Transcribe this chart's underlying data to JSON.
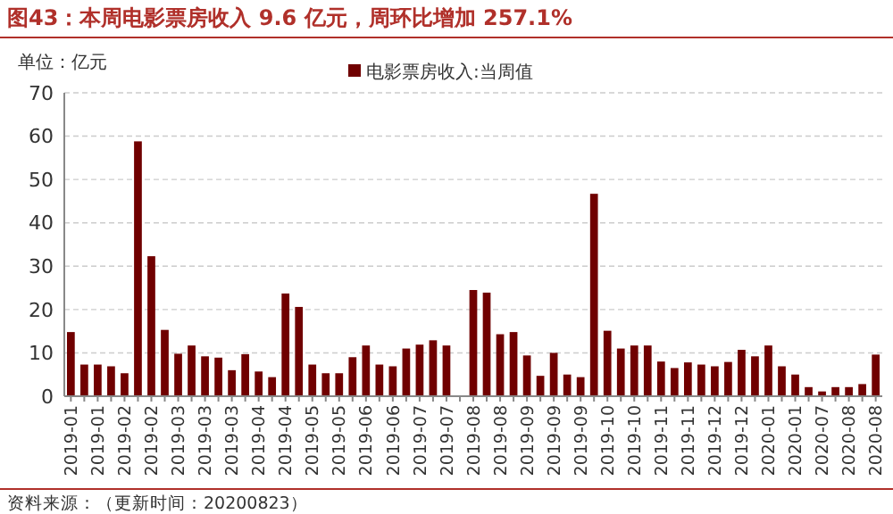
{
  "chart_data": {
    "type": "bar",
    "title": "图43：本周电影票房收入 9.6 亿元，周环比增加 257.1%",
    "ylabel": "单位：亿元",
    "categories": [
      "2019-01",
      null,
      "2019-01",
      null,
      "2019-02",
      null,
      "2019-02",
      null,
      "2019-03",
      null,
      "2019-03",
      null,
      "2019-03",
      null,
      "2019-04",
      null,
      "2019-04",
      null,
      "2019-05",
      null,
      "2019-05",
      null,
      "2019-06",
      null,
      "2019-06",
      null,
      "2019-07",
      null,
      "2019-07",
      null,
      "2019-08",
      null,
      "2019-08",
      null,
      "2019-09",
      null,
      "2019-09",
      null,
      "2019-09",
      null,
      "2019-10",
      null,
      "2019-10",
      null,
      "2019-11",
      null,
      "2019-11",
      null,
      "2019-12",
      null,
      "2019-12",
      null,
      "2020-01",
      null,
      "2020-01",
      null,
      "2020-07",
      null,
      "2020-08",
      null,
      "2020-08"
    ],
    "series": [
      {
        "name": "电影票房收入:当周值",
        "color": "#700000",
        "values": [
          14.8,
          7.3,
          7.3,
          6.9,
          5.3,
          58.8,
          32.3,
          15.3,
          9.8,
          11.7,
          9.2,
          8.9,
          6.0,
          9.7,
          5.7,
          4.4,
          23.7,
          20.6,
          7.3,
          5.3,
          5.3,
          9.0,
          11.7,
          7.3,
          6.9,
          11.0,
          11.9,
          12.9,
          11.7,
          null,
          24.5,
          23.9,
          14.3,
          14.8,
          9.4,
          4.7,
          10.0,
          5.0,
          4.4,
          46.7,
          15.1,
          11.0,
          11.7,
          11.7,
          8.0,
          6.5,
          7.8,
          7.3,
          6.9,
          7.9,
          10.7,
          9.2,
          11.7,
          6.9,
          5.0,
          2.1,
          1.1,
          2.1,
          2.1,
          2.8,
          9.6
        ]
      }
    ],
    "ylim": [
      0,
      70
    ],
    "yticks": [
      0,
      10,
      20,
      30,
      40,
      50,
      60,
      70
    ],
    "grid": "y",
    "legend": "top right",
    "annotations": [
      "资料来源：（更新时间：20200823）"
    ]
  }
}
